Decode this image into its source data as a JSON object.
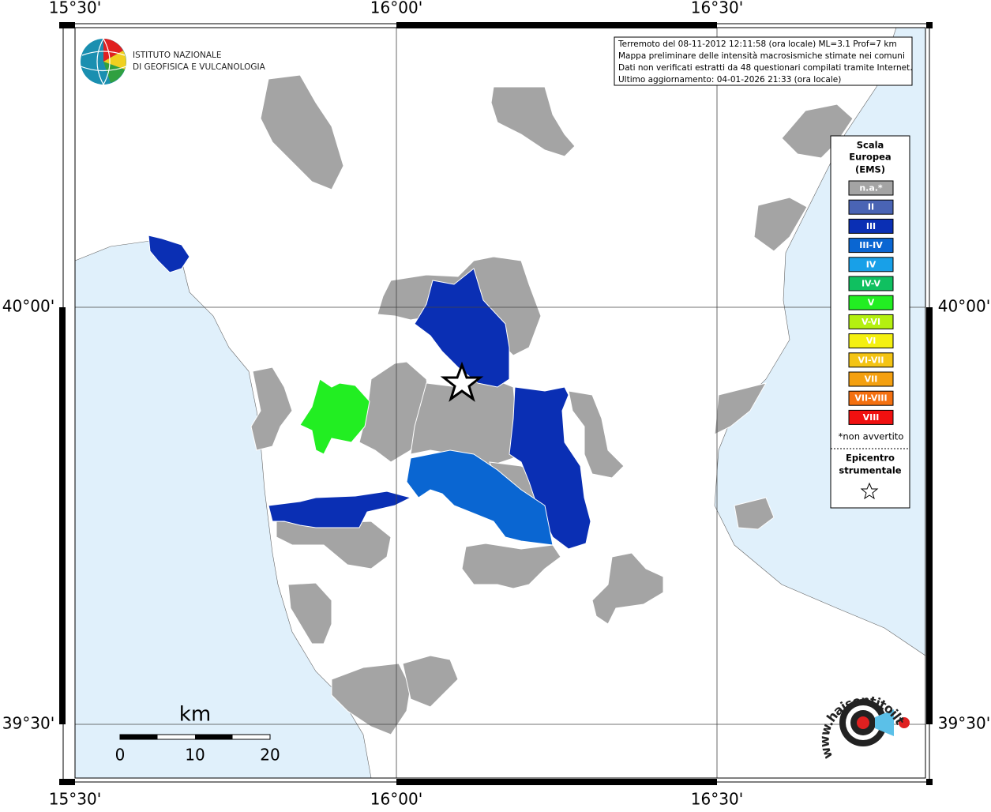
{
  "map": {
    "lon_labels": [
      "15°30'",
      "16°00'",
      "16°30'"
    ],
    "lat_labels": [
      "40°00'",
      "39°30'"
    ],
    "institute": [
      "ISTITUTO NAZIONALE",
      "DI GEOFISICA E VULCANOLOGIA"
    ],
    "info": [
      "Terremoto del 08-11-2012 12:11:58 (ora locale) ML=3.1 Prof=7 km",
      "Mappa preliminare delle intensità macrosismiche stimate nei comuni",
      "Dati non verificati estratti da 48 questionari compilati tramite Internet.",
      "Ultimo aggiornamento: 04-01-2026 21:33 (ora locale)"
    ],
    "legend": {
      "title": [
        "Scala",
        "Europea",
        "(EMS)"
      ],
      "items": [
        {
          "label": "n.a.*",
          "color": "#a4a4a4"
        },
        {
          "label": "II",
          "color": "#4a64b4"
        },
        {
          "label": "III",
          "color": "#0a2fb4"
        },
        {
          "label": "III-IV",
          "color": "#0a66d2"
        },
        {
          "label": "IV",
          "color": "#18a0e8"
        },
        {
          "label": "IV-V",
          "color": "#10c060"
        },
        {
          "label": "V",
          "color": "#22ee22"
        },
        {
          "label": "V-VI",
          "color": "#b4f010"
        },
        {
          "label": "VI",
          "color": "#f4f010"
        },
        {
          "label": "VI-VII",
          "color": "#f4c414"
        },
        {
          "label": "VII",
          "color": "#f4a010"
        },
        {
          "label": "VII-VIII",
          "color": "#f47010"
        },
        {
          "label": "VIII",
          "color": "#f01010"
        }
      ],
      "note": "*non avvertito",
      "epicenter": [
        "Epicentro",
        "strumentale"
      ]
    },
    "scale_bar": {
      "unit": "km",
      "labels": [
        "0",
        "10",
        "20"
      ]
    },
    "watermark": "www.haisentitoilterremoto.it"
  }
}
